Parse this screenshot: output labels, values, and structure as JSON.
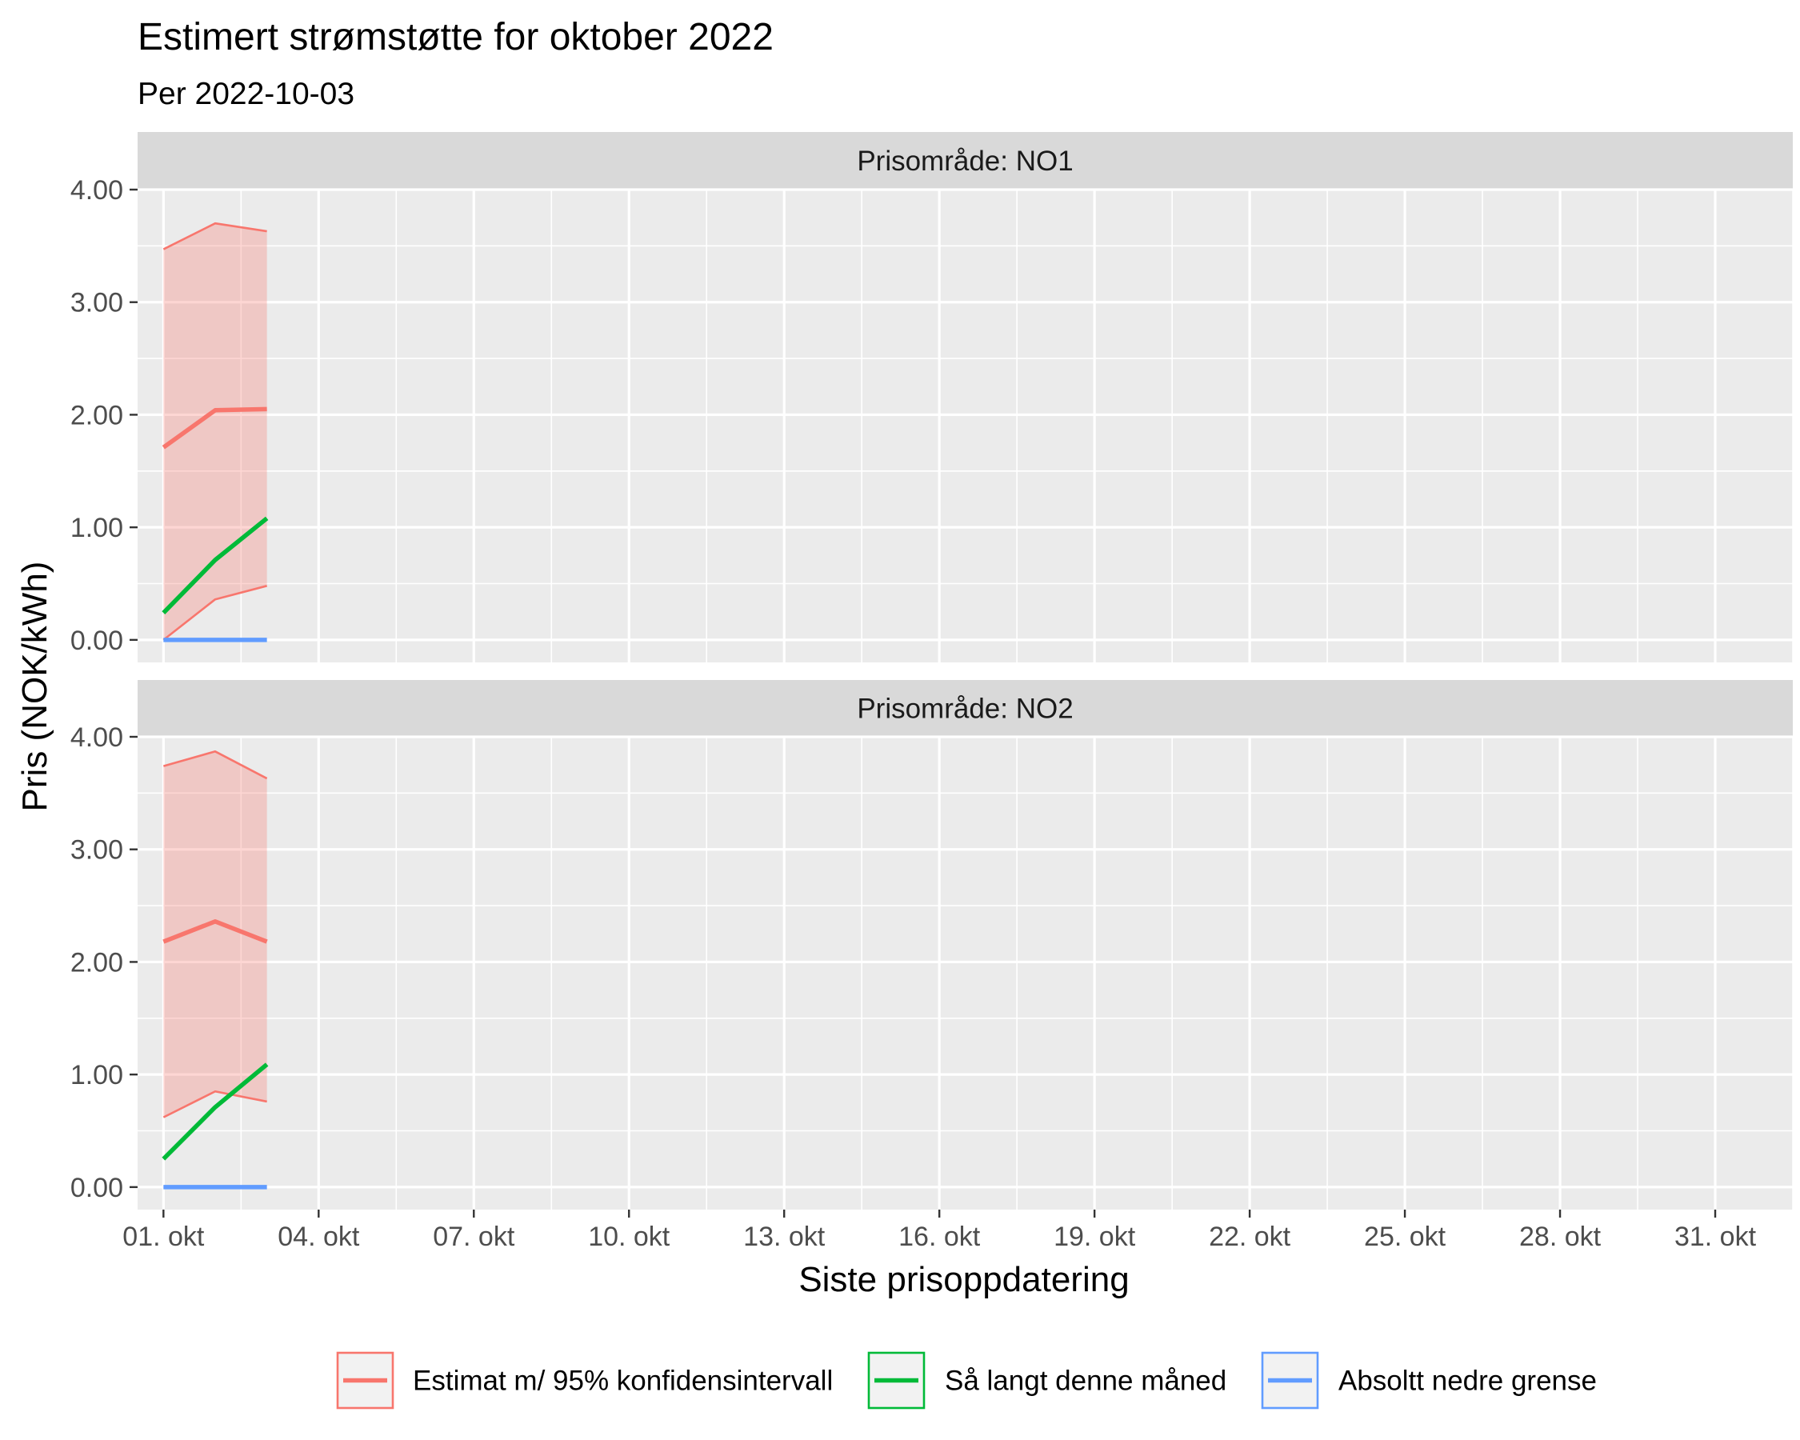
{
  "chart_data": {
    "type": "line",
    "title": "Estimert strømstøtte for oktober 2022",
    "subtitle": "Per 2022-10-03",
    "xlabel": "Siste prisoppdatering",
    "ylabel": "Pris (NOK/kWh)",
    "ylim": [
      -0.2,
      4.0
    ],
    "xlim": [
      -0.5,
      31.5
    ],
    "x_ticks": [
      0,
      3,
      6,
      9,
      12,
      15,
      18,
      21,
      24,
      27,
      30
    ],
    "x_tick_labels": [
      "01. okt",
      "04. okt",
      "07. okt",
      "10. okt",
      "13. okt",
      "16. okt",
      "19. okt",
      "22. okt",
      "25. okt",
      "28. okt",
      "31. okt"
    ],
    "y_ticks": [
      0,
      1,
      2,
      3,
      4
    ],
    "y_tick_labels": [
      "0.00",
      "1.00",
      "2.00",
      "3.00",
      "4.00"
    ],
    "x_dates": [
      "2022-10-01",
      "2022-10-02",
      "2022-10-03"
    ],
    "grid": true,
    "legend_position": "bottom",
    "colors": {
      "estimate": "#F8766D",
      "so_far": "#00BA38",
      "lower_bound": "#619CFF",
      "panel_bg": "#EBEBEB",
      "strip_bg": "#D9D9D9"
    },
    "legend": [
      {
        "key": "estimate",
        "label": "Estimat m/ 95% konfidensintervall"
      },
      {
        "key": "so_far",
        "label": "Så langt denne måned"
      },
      {
        "key": "lower_bound",
        "label": "Absoltt nedre grense"
      }
    ],
    "panels": [
      {
        "strip_label": "Prisområde: NO1",
        "estimate": [
          1.71,
          2.04,
          2.05
        ],
        "ci_upper": [
          3.47,
          3.7,
          3.63
        ],
        "ci_lower": [
          0.0,
          0.36,
          0.48
        ],
        "so_far": [
          0.24,
          0.71,
          1.08
        ],
        "lower_bound": [
          0.0,
          0.0,
          0.0
        ]
      },
      {
        "strip_label": "Prisområde: NO2",
        "estimate": [
          2.18,
          2.36,
          2.18
        ],
        "ci_upper": [
          3.74,
          3.87,
          3.63
        ],
        "ci_lower": [
          0.62,
          0.85,
          0.76
        ],
        "so_far": [
          0.25,
          0.71,
          1.09
        ],
        "lower_bound": [
          0.0,
          0.0,
          0.0
        ]
      }
    ]
  }
}
